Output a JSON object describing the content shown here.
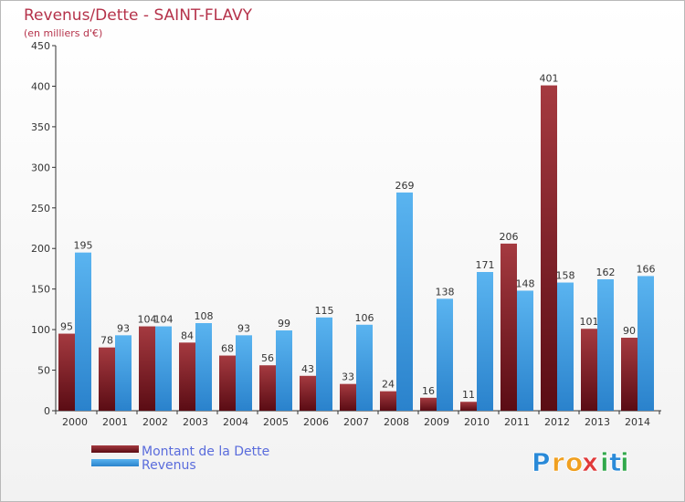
{
  "chart_data": {
    "type": "bar",
    "title": "Revenus/Dette - SAINT-FLAVY",
    "subtitle": "(en milliers d'€)",
    "categories": [
      "2000",
      "2001",
      "2002",
      "2003",
      "2004",
      "2005",
      "2006",
      "2007",
      "2008",
      "2009",
      "2010",
      "2011",
      "2012",
      "2013",
      "2014"
    ],
    "series": [
      {
        "name": "Montant de la Dette",
        "color": "#7a1a22",
        "values": [
          95,
          78,
          104,
          84,
          68,
          56,
          43,
          33,
          24,
          16,
          11,
          206,
          401,
          101,
          90
        ]
      },
      {
        "name": "Revenus",
        "color": "#3a9ee6",
        "values": [
          195,
          93,
          104,
          108,
          93,
          99,
          115,
          106,
          269,
          138,
          171,
          148,
          158,
          162,
          166
        ]
      }
    ],
    "ylim": [
      0,
      450
    ],
    "yticks": [
      0,
      50,
      100,
      150,
      200,
      250,
      300,
      350,
      400,
      450
    ],
    "grid": false,
    "legend": "bottom-left"
  },
  "brand": {
    "letters": [
      "P",
      "r",
      "o",
      "x",
      "i",
      "t",
      "i"
    ],
    "colors": [
      "#2a8ad8",
      "#f0a020",
      "#f0a020",
      "#e03a3a",
      "#30a84a",
      "#2a8ad8",
      "#30a84a"
    ]
  }
}
